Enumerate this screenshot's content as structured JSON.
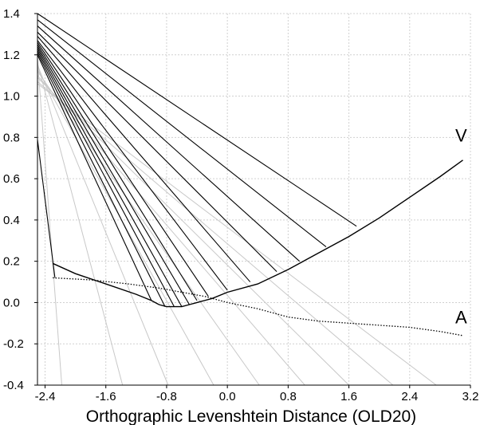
{
  "chart_data": {
    "type": "line",
    "title": "",
    "xlabel": "Orthographic Levenshtein Distance (OLD20)",
    "ylabel": "",
    "xlim": [
      -2.5,
      3.2
    ],
    "ylim": [
      -0.4,
      1.4
    ],
    "x_ticks": [
      "-2.4",
      "-1.6",
      "-0.8",
      "0.0",
      "0.8",
      "1.6",
      "2.4",
      "3.2"
    ],
    "y_ticks": [
      "-0.4",
      "-0.2",
      "0.0",
      "0.2",
      "0.4",
      "0.6",
      "0.8",
      "1.0",
      "1.2",
      "1.4"
    ],
    "grid": true,
    "series": [
      {
        "name": "V",
        "style": "solid",
        "color": "#000000",
        "points": [
          [
            -2.3,
            0.19
          ],
          [
            -2.0,
            0.14
          ],
          [
            -1.6,
            0.09
          ],
          [
            -1.2,
            0.04
          ],
          [
            -1.0,
            0.01
          ],
          [
            -0.9,
            -0.01
          ],
          [
            -0.8,
            -0.02
          ],
          [
            -0.7,
            -0.02
          ],
          [
            -0.6,
            -0.02
          ],
          [
            -0.5,
            -0.01
          ],
          [
            -0.4,
            0.0
          ],
          [
            -0.2,
            0.02
          ],
          [
            0.0,
            0.05
          ],
          [
            0.4,
            0.09
          ],
          [
            0.8,
            0.16
          ],
          [
            1.2,
            0.24
          ],
          [
            1.6,
            0.32
          ],
          [
            2.0,
            0.41
          ],
          [
            2.4,
            0.51
          ],
          [
            2.8,
            0.61
          ],
          [
            3.1,
            0.69
          ]
        ]
      },
      {
        "name": "A",
        "style": "dotted",
        "color": "#000000",
        "points": [
          [
            -2.3,
            0.12
          ],
          [
            -1.8,
            0.11
          ],
          [
            -1.3,
            0.09
          ],
          [
            -0.9,
            0.07
          ],
          [
            -0.6,
            0.05
          ],
          [
            -0.3,
            0.03
          ],
          [
            0.0,
            0.0
          ],
          [
            0.4,
            -0.03
          ],
          [
            0.8,
            -0.07
          ],
          [
            1.2,
            -0.09
          ],
          [
            1.6,
            -0.1
          ],
          [
            2.0,
            -0.11
          ],
          [
            2.4,
            -0.12
          ],
          [
            2.8,
            -0.14
          ],
          [
            3.1,
            -0.16
          ]
        ]
      }
    ],
    "black_rays": [
      {
        "from": [
          -2.5,
          1.4
        ],
        "to": [
          1.7,
          0.37
        ]
      },
      {
        "from": [
          -2.5,
          1.37
        ],
        "to": [
          1.3,
          0.27
        ]
      },
      {
        "from": [
          -2.5,
          1.34
        ],
        "to": [
          0.95,
          0.2
        ]
      },
      {
        "from": [
          -2.5,
          1.31
        ],
        "to": [
          0.65,
          0.15
        ]
      },
      {
        "from": [
          -2.5,
          1.29
        ],
        "to": [
          0.3,
          0.1
        ]
      },
      {
        "from": [
          -2.5,
          1.27
        ],
        "to": [
          0.0,
          0.06
        ]
      },
      {
        "from": [
          -2.5,
          1.26
        ],
        "to": [
          -0.25,
          0.03
        ]
      },
      {
        "from": [
          -2.5,
          1.25
        ],
        "to": [
          -0.4,
          0.01
        ]
      },
      {
        "from": [
          -2.5,
          1.24
        ],
        "to": [
          -0.5,
          -0.01
        ]
      },
      {
        "from": [
          -2.5,
          1.23
        ],
        "to": [
          -0.6,
          -0.02
        ]
      },
      {
        "from": [
          -2.5,
          1.22
        ],
        "to": [
          -0.7,
          -0.02
        ]
      },
      {
        "from": [
          -2.5,
          1.21
        ],
        "to": [
          -0.82,
          -0.02
        ]
      },
      {
        "from": [
          -2.5,
          1.2
        ],
        "to": [
          -1.0,
          0.01
        ]
      },
      {
        "from": [
          -2.5,
          0.79
        ],
        "to": [
          -2.27,
          0.12
        ]
      }
    ],
    "gray_rays": [
      {
        "from": [
          -2.5,
          1.18
        ],
        "to": [
          -2.18,
          -0.4
        ]
      },
      {
        "from": [
          -2.5,
          1.16
        ],
        "to": [
          -1.38,
          -0.4
        ]
      },
      {
        "from": [
          -2.5,
          1.15
        ],
        "to": [
          -0.78,
          -0.4
        ]
      },
      {
        "from": [
          -2.5,
          1.13
        ],
        "to": [
          -0.18,
          -0.4
        ]
      },
      {
        "from": [
          -2.5,
          1.12
        ],
        "to": [
          0.42,
          -0.4
        ]
      },
      {
        "from": [
          -2.5,
          1.1
        ],
        "to": [
          1.02,
          -0.4
        ]
      },
      {
        "from": [
          -2.5,
          1.09
        ],
        "to": [
          1.6,
          -0.4
        ]
      },
      {
        "from": [
          -2.5,
          1.07
        ],
        "to": [
          2.18,
          -0.4
        ]
      },
      {
        "from": [
          -2.5,
          1.06
        ],
        "to": [
          2.75,
          -0.4
        ]
      }
    ],
    "labels": [
      {
        "text": "V",
        "x": 3.0,
        "y": 0.78
      },
      {
        "text": "A",
        "x": 3.0,
        "y": -0.1
      }
    ]
  }
}
